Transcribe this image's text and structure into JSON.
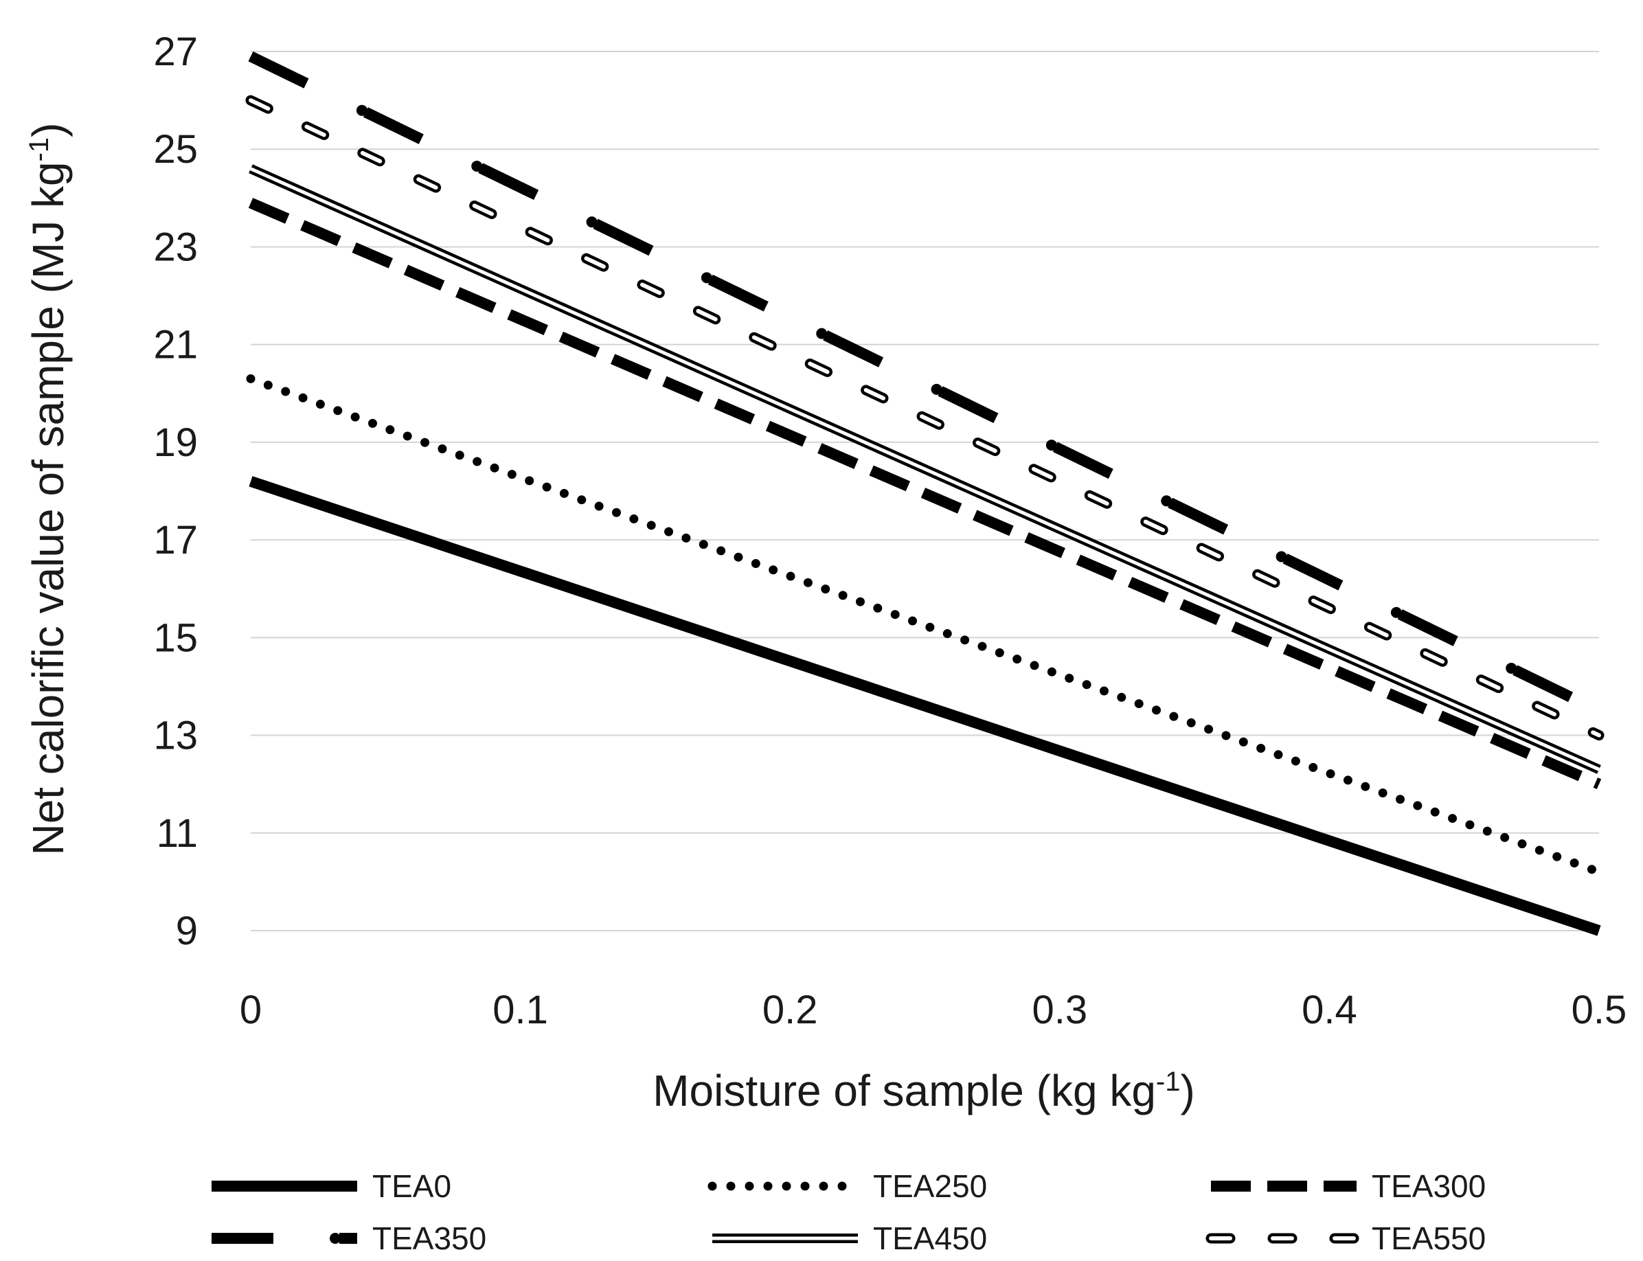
{
  "chart_data": {
    "type": "line",
    "title": "",
    "xlabel": "Moisture of sample (kg kg",
    "xlabel_sup": "-1",
    "xlabel_tail": ")",
    "ylabel": "Net calorific value of sample (MJ kg",
    "ylabel_sup": "-1",
    "ylabel_tail": ")",
    "xlim": [
      0,
      0.5
    ],
    "ylim": [
      9,
      27
    ],
    "x_ticks": [
      0,
      0.1,
      0.2,
      0.3,
      0.4,
      0.5
    ],
    "x_tick_labels": [
      "0",
      "0.1",
      "0.2",
      "0.3",
      "0.4",
      "0.5"
    ],
    "y_ticks": [
      9,
      11,
      13,
      15,
      17,
      19,
      21,
      23,
      25,
      27
    ],
    "y_tick_labels": [
      "9",
      "11",
      "13",
      "15",
      "17",
      "19",
      "21",
      "23",
      "25",
      "27"
    ],
    "grid": "horizontal",
    "legend_position": "bottom",
    "series": [
      {
        "name": "TEA0",
        "style": "solid-thick",
        "x": [
          0,
          0.5
        ],
        "y": [
          18.2,
          9.0
        ]
      },
      {
        "name": "TEA250",
        "style": "dotted",
        "x": [
          0,
          0.5
        ],
        "y": [
          20.3,
          10.2
        ]
      },
      {
        "name": "TEA300",
        "style": "dashed",
        "x": [
          0,
          0.5
        ],
        "y": [
          23.9,
          12.0
        ]
      },
      {
        "name": "TEA350",
        "style": "dash-dot",
        "x": [
          0,
          0.5
        ],
        "y": [
          26.9,
          13.5
        ]
      },
      {
        "name": "TEA450",
        "style": "double-line",
        "x": [
          0,
          0.5
        ],
        "y": [
          24.6,
          12.3
        ]
      },
      {
        "name": "TEA550",
        "style": "hollow-dash",
        "x": [
          0,
          0.5
        ],
        "y": [
          26.0,
          13.0
        ]
      }
    ]
  }
}
